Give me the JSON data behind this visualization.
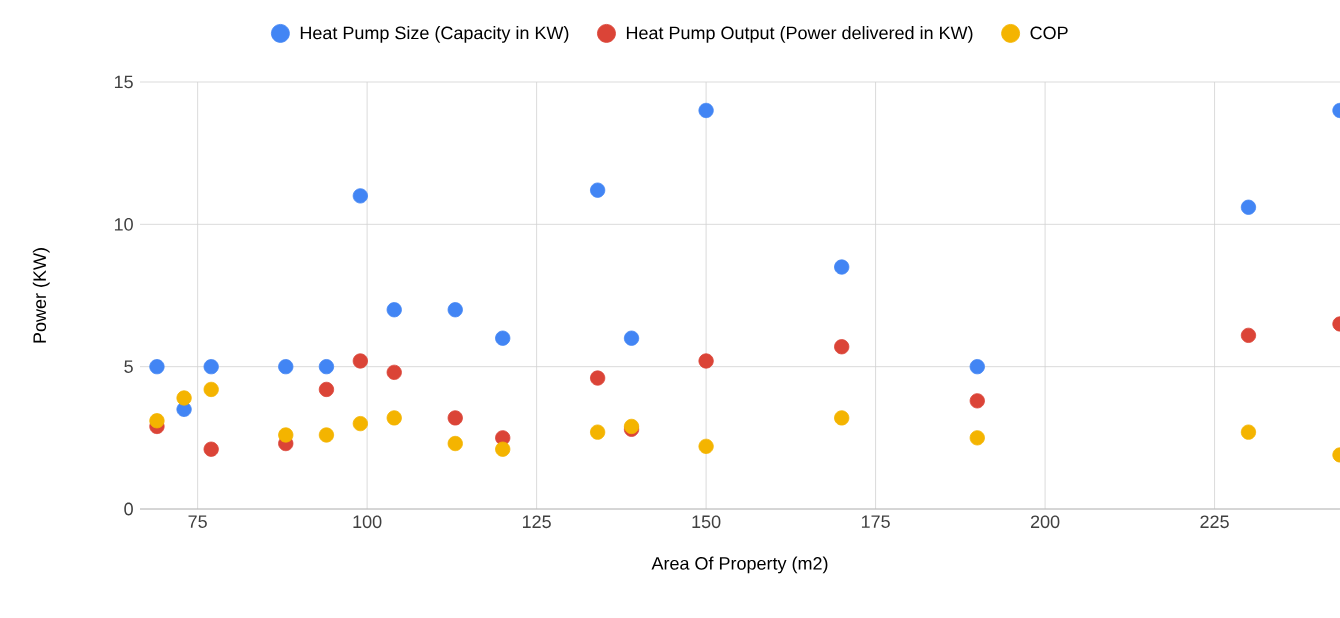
{
  "chart_data": {
    "type": "scatter",
    "xlabel": "Area Of Property (m2)",
    "ylabel": "Power (KW)",
    "x": [
      69,
      73,
      77,
      88,
      94,
      99,
      104,
      113,
      120,
      134,
      139,
      150,
      170,
      190,
      230,
      243.5
    ],
    "series": [
      {
        "name": "Heat Pump Size (Capacity in KW)",
        "color": "#4285f4",
        "values": [
          5,
          3.5,
          5,
          5,
          5,
          11,
          7,
          7,
          6,
          11.2,
          6,
          14,
          8.5,
          5,
          10.6,
          14
        ]
      },
      {
        "name": "Heat Pump Output (Power delivered in KW)",
        "color": "#db4437",
        "values": [
          2.9,
          null,
          2.1,
          2.3,
          4.2,
          5.2,
          4.8,
          3.2,
          2.5,
          4.6,
          2.8,
          5.2,
          5.7,
          3.8,
          6.1,
          6.5
        ]
      },
      {
        "name": "COP",
        "color": "#f4b400",
        "values": [
          3.1,
          3.9,
          4.2,
          2.6,
          2.6,
          3.0,
          3.2,
          2.3,
          2.1,
          2.7,
          2.9,
          2.2,
          3.2,
          2.5,
          2.7,
          1.9
        ]
      }
    ],
    "xlim": [
      66.5,
      243.5
    ],
    "ylim": [
      0,
      15
    ],
    "xticks": [
      75,
      100,
      125,
      150,
      175,
      200,
      225
    ],
    "yticks": [
      0,
      5,
      10,
      15
    ],
    "grid": true,
    "legend": "top",
    "marker": "circle"
  }
}
